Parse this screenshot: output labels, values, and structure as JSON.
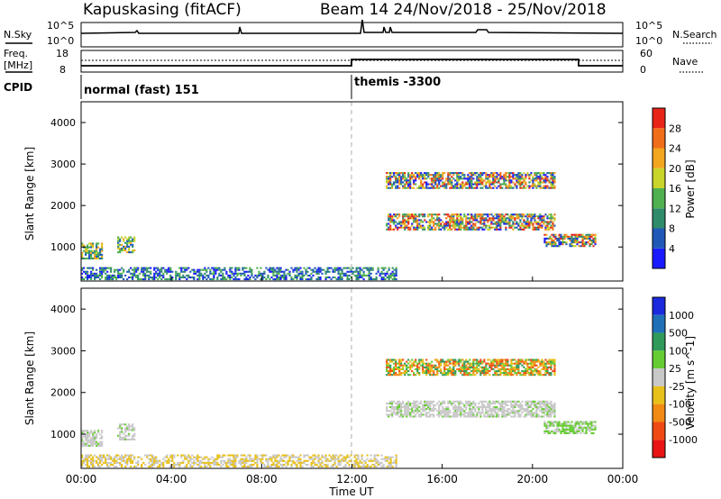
{
  "header": {
    "station": "Kapuskasing (fitACF)",
    "beam_info": "Beam 14  24/Nov/2018 - 25/Nov/2018"
  },
  "noise_panel": {
    "left_label": "N.Sky",
    "right_label": "N.Search",
    "left_ticks": [
      "10^5",
      "10^0"
    ],
    "right_ticks": [
      "10^5",
      "10^0"
    ]
  },
  "freq_panel": {
    "left_label_line1": "Freq.",
    "left_label_line2": "[MHz]",
    "left_ticks": [
      "18",
      "8"
    ],
    "right_label": "Nave",
    "right_ticks": [
      "60",
      "0"
    ]
  },
  "cpid_panel": {
    "label": "CPID",
    "modes": [
      "normal (fast) 151",
      "themis -3300"
    ]
  },
  "x_axis": {
    "label": "Time UT",
    "ticks": [
      "00:00",
      "04:00",
      "08:00",
      "12:00",
      "16:00",
      "20:00",
      "00:00"
    ]
  },
  "power_panel": {
    "ylabel": "Slant Range [km]",
    "yticks": [
      "1000",
      "2000",
      "3000",
      "4000"
    ],
    "colorbar_label": "Power [dB]",
    "colorbar_ticks": [
      "4",
      "8",
      "12",
      "16",
      "20",
      "24",
      "28"
    ],
    "colors": [
      "#1a1aff",
      "#2058b8",
      "#2f8c6a",
      "#4fb04f",
      "#c8d42a",
      "#f2a51f",
      "#f06d1a",
      "#e82418"
    ]
  },
  "velocity_panel": {
    "ylabel": "Slant Range [km]",
    "yticks": [
      "1000",
      "2000",
      "3000",
      "4000"
    ],
    "colorbar_label": "Velocity [m s^-1]",
    "colorbar_ticks": [
      "1000",
      "500",
      "100",
      "25",
      "-25",
      "-100",
      "-500",
      "-1000"
    ],
    "colors": [
      "#1a2adc",
      "#2070b8",
      "#2f9a5a",
      "#66cc33",
      "#c8c8c8",
      "#e8c01a",
      "#f08a14",
      "#f04a14",
      "#e81414"
    ]
  },
  "chart_data": {
    "type": "heatmap",
    "x_unit": "hours UT",
    "x_range": [
      0,
      24
    ],
    "y_range_km": [
      180,
      4500
    ],
    "mode_change_hour": 12,
    "power_regions": [
      {
        "t": [
          0.0,
          0.9
        ],
        "r": [
          700,
          1100
        ],
        "level": "mixed"
      },
      {
        "t": [
          1.6,
          2.4
        ],
        "r": [
          850,
          1250
        ],
        "level": "mixed"
      },
      {
        "t": [
          0.0,
          12.0
        ],
        "r": [
          200,
          500
        ],
        "level": "weak"
      },
      {
        "t": [
          12.0,
          14.0
        ],
        "r": [
          200,
          500
        ],
        "level": "weak"
      },
      {
        "t": [
          13.5,
          21.0
        ],
        "r": [
          1400,
          1800
        ],
        "level": "strong"
      },
      {
        "t": [
          13.5,
          21.0
        ],
        "r": [
          2400,
          2800
        ],
        "level": "strong"
      },
      {
        "t": [
          20.5,
          22.8
        ],
        "r": [
          1000,
          1300
        ],
        "level": "strong"
      }
    ]
  }
}
